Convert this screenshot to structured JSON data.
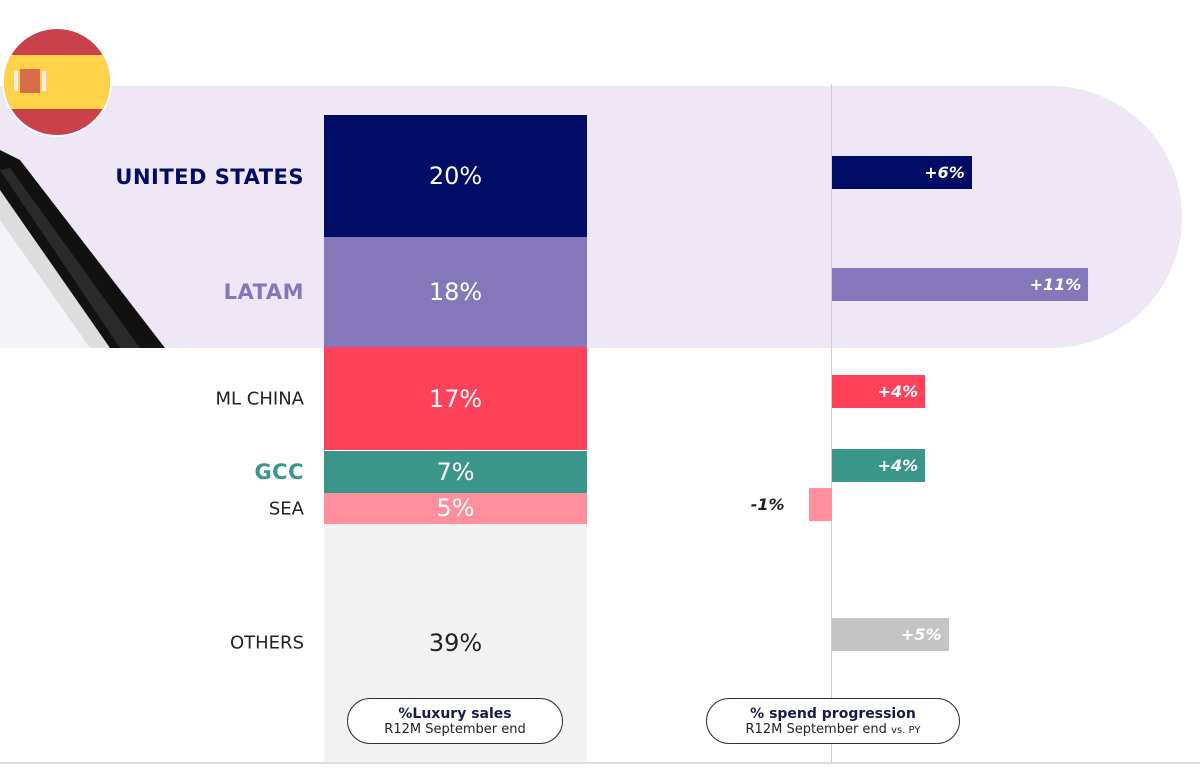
{
  "chart_data": [
    {
      "type": "bar",
      "stacked": true,
      "categories": [
        "UNITED STATES",
        "LATAM",
        "ML CHINA",
        "GCC",
        "SEA",
        "OTHERS"
      ],
      "values": [
        20,
        18,
        17,
        7,
        5,
        39
      ],
      "value_labels": [
        "20%",
        "18%",
        "17%",
        "7%",
        "5%",
        "39%"
      ],
      "colors": [
        "#000c66",
        "#8478bb",
        "#ff425a",
        "#3a968a",
        "#ff8f9c",
        "#f2f2f2"
      ],
      "label_colors": [
        "#000c66",
        "#8478bb",
        "#222222",
        "#3a968a",
        "#222222",
        "#222222"
      ],
      "caption_title": "%Luxury sales",
      "caption_sub": "R12M September end"
    },
    {
      "type": "bar",
      "orientation": "horizontal",
      "categories": [
        "UNITED STATES",
        "LATAM",
        "ML CHINA",
        "GCC",
        "SEA",
        "OTHERS"
      ],
      "values": [
        6,
        11,
        4,
        4,
        -1,
        5
      ],
      "value_labels": [
        "+6%",
        "+11%",
        "+4%",
        "+4%",
        "-1%",
        "+5%"
      ],
      "colors": [
        "#000c66",
        "#8478bb",
        "#ff425a",
        "#3a968a",
        "#ff8f9c",
        "#c4c4c4"
      ],
      "caption_title": "% spend progression",
      "caption_sub": "R12M September end",
      "caption_sub_small": "vs. PY"
    }
  ],
  "flag_icon": "spain-flag-icon",
  "highlight_color": "#efe6f6"
}
